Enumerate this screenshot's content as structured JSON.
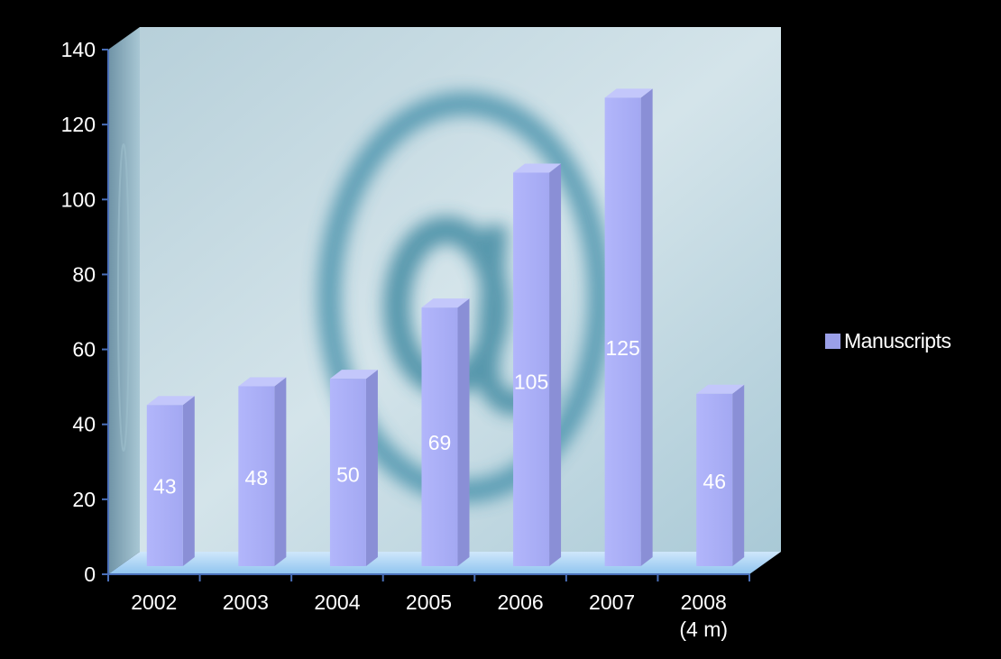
{
  "chart_data": {
    "type": "bar",
    "title": "",
    "xlabel": "",
    "ylabel": "",
    "categories": [
      "2002",
      "2003",
      "2004",
      "2005",
      "2006",
      "2007",
      "2008\n(4 m)"
    ],
    "series": [
      {
        "name": "Manuscripts",
        "values": [
          43,
          48,
          50,
          69,
          105,
          125,
          46
        ]
      }
    ],
    "data_labels": [
      "43",
      "48",
      "50",
      "69",
      "105",
      "125",
      "46"
    ],
    "y_ticks": [
      "0",
      "20",
      "40",
      "60",
      "80",
      "100",
      "120",
      "140"
    ],
    "ylim": [
      0,
      140
    ],
    "grid": false,
    "legend_position": "right",
    "three_d": true,
    "colors": {
      "background": "#000000",
      "bar_front": "#a9aef5",
      "bar_side": "#8a8fd6",
      "bar_top": "#c3c7fb",
      "label_text": "#ffffff",
      "axis_text": "#ffffff",
      "legend_swatch": "#9a9fe8",
      "wall": "#c9dde6",
      "floor": "#a8d2f2"
    }
  }
}
